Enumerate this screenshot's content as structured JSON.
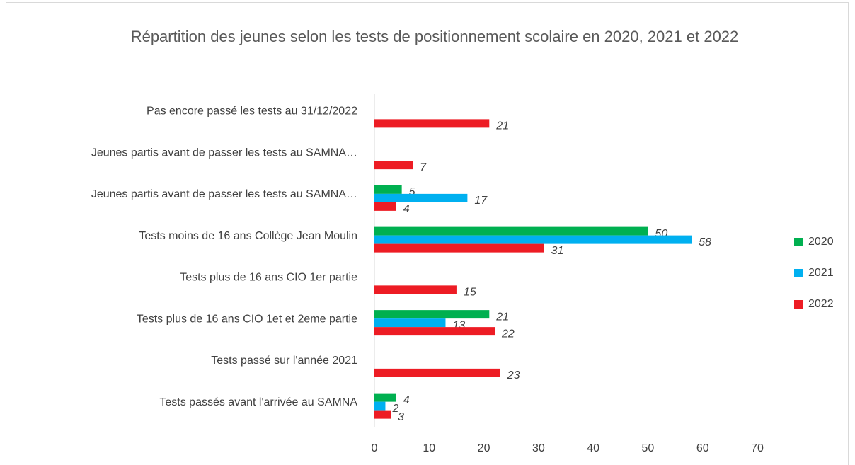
{
  "chart_data": {
    "type": "bar",
    "orientation": "horizontal",
    "title": "Répartition des jeunes selon les tests de positionnement scolaire en 2020, 2021 et 2022",
    "categories": [
      "Pas encore passé les tests au 31/12/2022",
      "Jeunes partis avant de passer les tests au SAMNA…",
      "Jeunes partis avant de passer les tests au SAMNA…",
      "Tests moins de 16 ans Collège Jean Moulin",
      "Tests plus de 16 ans CIO 1er partie",
      "Tests plus de 16 ans CIO 1et et 2eme partie",
      "Tests passé sur l'année 2021",
      "Tests passés avant l'arrivée au SAMNA"
    ],
    "series": [
      {
        "name": "2020",
        "color": "#00b050",
        "values": [
          null,
          null,
          5,
          50,
          null,
          21,
          null,
          4
        ]
      },
      {
        "name": "2021",
        "color": "#00b0f0",
        "values": [
          null,
          null,
          17,
          58,
          null,
          13,
          null,
          2
        ]
      },
      {
        "name": "2022",
        "color": "#ed1c24",
        "values": [
          21,
          7,
          4,
          31,
          15,
          22,
          23,
          3
        ]
      }
    ],
    "xlim": [
      0,
      70
    ],
    "xticks": [
      0,
      10,
      20,
      30,
      40,
      50,
      60,
      70
    ],
    "grid": false,
    "legend": "right"
  }
}
